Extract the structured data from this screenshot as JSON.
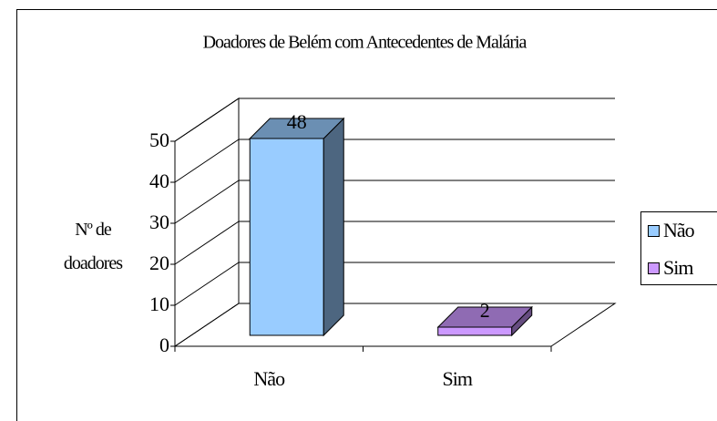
{
  "chart_data": {
    "type": "bar3d",
    "title": "Doadores de Belém com Antecedentes de Malária",
    "y_label": "Nº de doadores",
    "categories": [
      "Não",
      "Sim"
    ],
    "values": [
      48,
      2
    ],
    "colors": [
      "#99ccff",
      "#cc99ff"
    ],
    "ylim": [
      0,
      50
    ],
    "yticks": [
      0,
      10,
      20,
      30,
      40,
      50
    ],
    "grid": true,
    "legend": "right"
  }
}
